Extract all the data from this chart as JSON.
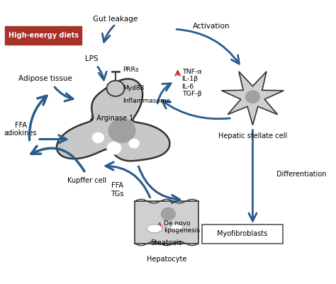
{
  "bg_color": "#ffffff",
  "arrow_color": "#2a5b8c",
  "red_box_color": "#a63228",
  "red_box_text": "High-energy diets",
  "kupffer_color": "#c8c8c8",
  "kupffer_outline": "#333333",
  "hepatocyte_color": "#d0d0d0",
  "stellate_color": "#d0d0d0",
  "nucleus_color": "#a0a0a0",
  "white_circle": "#ffffff",
  "red_arrow": "#cc3333",
  "labels": {
    "gut_leakage": "Gut leakage",
    "lps": "LPS",
    "adipose": "Adipose tissue",
    "ffa_adipo": "FFA\nadiokines",
    "prrs": "PRRs",
    "myd88": "Myd88",
    "inflammasome": "Inflammasome",
    "arginase": "↓ Arginase 1",
    "kupffer": "Kupffer cell",
    "cytokines": "TNF-α\nIL-1β\nIL-6\nTGF-β",
    "activation": "Activation",
    "hepatic_stellate": "Hepatic stellate cell",
    "differentiation": "Differentiation",
    "myofibroblasts": "Myofibroblasts",
    "ffa_tgs": "FFA\nTGs",
    "de_novo": "De novo\nlipogenesis",
    "steatosis": "Steatosis",
    "hepatocyte": "Hepatocyte"
  },
  "figsize": [
    4.74,
    4.01
  ],
  "dpi": 100
}
